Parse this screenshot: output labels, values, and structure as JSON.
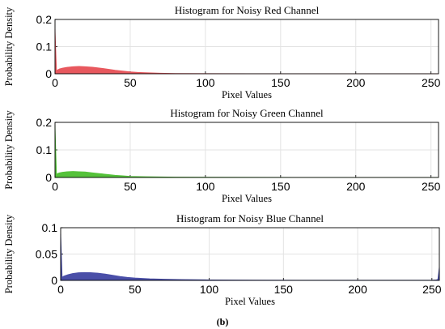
{
  "chart_data": [
    {
      "type": "area",
      "title": "Histogram for Noisy Red Channel",
      "xlabel": "Pixel Values",
      "ylabel": "Probability Density",
      "xlim": [
        0,
        255
      ],
      "ylim": [
        0,
        0.2
      ],
      "yticks": [
        "0",
        "0.1",
        "0.2"
      ],
      "xticks": [
        "0",
        "50",
        "100",
        "150",
        "200",
        "250"
      ],
      "grid": true,
      "color": "#e8585e",
      "x": [
        0,
        1,
        2,
        3,
        5,
        8,
        12,
        16,
        20,
        25,
        30,
        35,
        40,
        45,
        50,
        55,
        60,
        70,
        80,
        100,
        130,
        160,
        200,
        255
      ],
      "y": [
        0.165,
        0.012,
        0.015,
        0.018,
        0.021,
        0.024,
        0.026,
        0.027,
        0.026,
        0.024,
        0.021,
        0.017,
        0.013,
        0.01,
        0.007,
        0.005,
        0.004,
        0.002,
        0.001,
        0.0005,
        0.0002,
        0.0001,
        0.0,
        0.0
      ]
    },
    {
      "type": "area",
      "title": "Histogram for Noisy Green Channel",
      "xlabel": "Pixel Values",
      "ylabel": "Probability Density",
      "xlim": [
        0,
        255
      ],
      "ylim": [
        0,
        0.2
      ],
      "yticks": [
        "0",
        "0.1",
        "0.2"
      ],
      "xticks": [
        "0",
        "50",
        "100",
        "150",
        "200",
        "250"
      ],
      "grid": true,
      "color": "#55c23a",
      "x": [
        0,
        1,
        2,
        3,
        5,
        8,
        12,
        16,
        20,
        25,
        30,
        35,
        40,
        45,
        50,
        60,
        70,
        80,
        100,
        130,
        160,
        200,
        255
      ],
      "y": [
        0.19,
        0.012,
        0.015,
        0.017,
        0.019,
        0.021,
        0.022,
        0.021,
        0.02,
        0.017,
        0.014,
        0.011,
        0.008,
        0.006,
        0.004,
        0.003,
        0.002,
        0.0015,
        0.001,
        0.0005,
        0.0002,
        0.0,
        0.0
      ]
    },
    {
      "type": "area",
      "title": "Histogram for Noisy Blue Channel",
      "xlabel": "Pixel Values",
      "ylabel": "Probability Density",
      "xlim": [
        0,
        255
      ],
      "ylim": [
        0,
        0.1
      ],
      "yticks": [
        "0",
        "0.05",
        "0.1"
      ],
      "xticks": [
        "0",
        "50",
        "100",
        "150",
        "200",
        "250"
      ],
      "grid": true,
      "color": "#4a4fa8",
      "x": [
        0,
        1,
        2,
        3,
        5,
        8,
        12,
        16,
        20,
        25,
        30,
        35,
        40,
        45,
        50,
        60,
        70,
        80,
        100,
        130,
        160,
        200,
        250,
        253,
        254,
        255
      ],
      "y": [
        0.088,
        0.006,
        0.008,
        0.009,
        0.011,
        0.013,
        0.0145,
        0.015,
        0.0148,
        0.0138,
        0.012,
        0.0098,
        0.0075,
        0.0058,
        0.0045,
        0.003,
        0.0022,
        0.0016,
        0.001,
        0.0006,
        0.0004,
        0.0003,
        0.0003,
        0.001,
        0.002,
        0.025
      ]
    }
  ],
  "caption": "(b)"
}
